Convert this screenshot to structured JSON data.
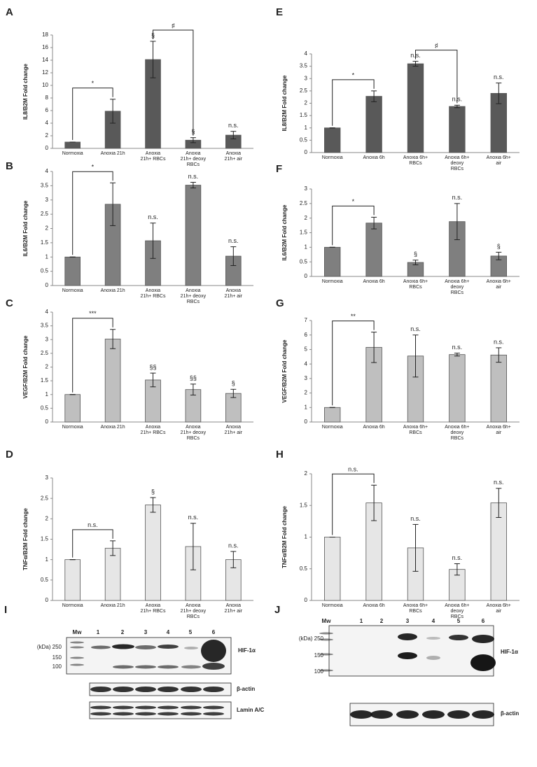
{
  "chart_data": [
    {
      "type": "bar",
      "panel": "A",
      "ylabel": "IL8/B2M Fold change",
      "categories": [
        "Normoxia",
        "Anoxia 21h",
        "Anoxia 21h+ RBCs",
        "Anoxia 21h+ deoxy RBCs",
        "Anoxia 21h+ air"
      ],
      "values": [
        1,
        5.9,
        14.1,
        1.3,
        2.1
      ],
      "errors": [
        0,
        1.9,
        2.9,
        0.4,
        0.6
      ],
      "annotations": [
        null,
        null,
        "§",
        "§",
        "n.s."
      ],
      "brackets": [
        {
          "from": 0,
          "to": 1,
          "label": "*"
        },
        {
          "from": 2,
          "to": 3,
          "label": "♯"
        }
      ],
      "color": "#595959",
      "ylim": [
        0,
        18
      ],
      "yticks": [
        0,
        2,
        4,
        6,
        8,
        10,
        12,
        14,
        16,
        18
      ]
    },
    {
      "type": "bar",
      "panel": "B",
      "ylabel": "IL6/B2M Fold change",
      "categories": [
        "Normoxia",
        "Anoxia 21h",
        "Anoxia 21h+ RBCs",
        "Anoxia 21h+ deoxy RBCs",
        "Anoxia 21h+ air"
      ],
      "values": [
        1,
        2.85,
        1.57,
        3.52,
        1.03
      ],
      "errors": [
        0,
        0.75,
        0.62,
        0.1,
        0.33
      ],
      "annotations": [
        null,
        null,
        "n.s.",
        "n.s.",
        "n.s."
      ],
      "brackets": [
        {
          "from": 0,
          "to": 1,
          "label": "*"
        }
      ],
      "color": "#7f7f7f",
      "ylim": [
        0,
        4
      ],
      "yticks": [
        0,
        0.5,
        1,
        1.5,
        2,
        2.5,
        3,
        3.5,
        4
      ]
    },
    {
      "type": "bar",
      "panel": "C",
      "ylabel": "VEGF/B2M Fold change",
      "categories": [
        "Normoxia",
        "Anoxia 21h",
        "Anoxia 21h+ RBCs",
        "Anoxia 21h+ deoxy RBCs",
        "Anoxia 21h+ air"
      ],
      "values": [
        1,
        3.02,
        1.53,
        1.18,
        1.04
      ],
      "errors": [
        0,
        0.35,
        0.25,
        0.2,
        0.15
      ],
      "annotations": [
        null,
        null,
        "§§",
        "§§",
        "§"
      ],
      "brackets": [
        {
          "from": 0,
          "to": 1,
          "label": "***"
        }
      ],
      "color": "#bfbfbf",
      "ylim": [
        0,
        4
      ],
      "yticks": [
        0,
        0.5,
        1,
        1.5,
        2,
        2.5,
        3,
        3.5,
        4
      ]
    },
    {
      "type": "bar",
      "panel": "D",
      "ylabel": "TNFα/B2M Fold change",
      "categories": [
        "Normoxia",
        "Anoxia 21h",
        "Anoxia 21h+ RBCs",
        "Anoxia 21h+ deoxy RBCs",
        "Anoxia 21h+ air"
      ],
      "values": [
        1,
        1.28,
        2.34,
        1.32,
        1.0
      ],
      "errors": [
        0,
        0.18,
        0.18,
        0.57,
        0.2
      ],
      "annotations": [
        null,
        null,
        "§",
        "n.s.",
        "n.s."
      ],
      "brackets": [
        {
          "from": 0,
          "to": 1,
          "label": "n.s."
        }
      ],
      "color": "#e6e6e6",
      "ylim": [
        0,
        3
      ],
      "yticks": [
        0,
        0.5,
        1,
        1.5,
        2,
        2.5,
        3
      ]
    },
    {
      "type": "bar",
      "panel": "E",
      "ylabel": "IL8/B2M Fold change",
      "categories": [
        "Normoxia",
        "Anoxia 6h",
        "Anoxia 6h+ RBCs",
        "Anoxia 6h+ deoxy RBCs",
        "Anoxia 6h+ air"
      ],
      "values": [
        1,
        2.28,
        3.6,
        1.87,
        2.4
      ],
      "errors": [
        0,
        0.22,
        0.1,
        0.05,
        0.42
      ],
      "annotations": [
        null,
        null,
        "n.s.",
        "n.s.",
        "n.s."
      ],
      "brackets": [
        {
          "from": 0,
          "to": 1,
          "label": "*"
        },
        {
          "from": 2,
          "to": 3,
          "label": "♯"
        }
      ],
      "color": "#595959",
      "ylim": [
        0,
        4
      ],
      "yticks": [
        0,
        0.5,
        1,
        1.5,
        2,
        2.5,
        3,
        3.5,
        4
      ]
    },
    {
      "type": "bar",
      "panel": "F",
      "ylabel": "IL6/B2M Fold change",
      "categories": [
        "Normoxia",
        "Anoxia 6h",
        "Anoxia 6h+ RBCs",
        "Anoxia 6h+ deoxy RBCs",
        "Anoxia 6h+ air"
      ],
      "values": [
        1,
        1.83,
        0.48,
        1.88,
        0.7
      ],
      "errors": [
        0,
        0.2,
        0.08,
        0.62,
        0.13
      ],
      "annotations": [
        null,
        null,
        "§",
        "n.s.",
        "§"
      ],
      "brackets": [
        {
          "from": 0,
          "to": 1,
          "label": "*"
        }
      ],
      "color": "#7f7f7f",
      "ylim": [
        0,
        3
      ],
      "yticks": [
        0,
        0.5,
        1,
        1.5,
        2,
        2.5,
        3
      ]
    },
    {
      "type": "bar",
      "panel": "G",
      "ylabel": "VEGF/B2M Fold change",
      "categories": [
        "Normoxia",
        "Anoxia 6h",
        "Anoxia 6h+ RBCs",
        "Anoxia 6h+ deoxy RBCs",
        "Anoxia 6h+ air"
      ],
      "values": [
        1,
        5.15,
        4.55,
        4.65,
        4.62
      ],
      "errors": [
        0,
        1.05,
        1.45,
        0.1,
        0.5
      ],
      "annotations": [
        null,
        null,
        "n.s.",
        "n.s.",
        "n.s."
      ],
      "brackets": [
        {
          "from": 0,
          "to": 1,
          "label": "**"
        }
      ],
      "color": "#bfbfbf",
      "ylim": [
        0,
        7
      ],
      "yticks": [
        0,
        1,
        2,
        3,
        4,
        5,
        6,
        7
      ]
    },
    {
      "type": "bar",
      "panel": "H",
      "ylabel": "TNFα/B2M Fold change",
      "categories": [
        "Normoxia",
        "Anoxia 6h",
        "Anoxia 6h+ RBCs",
        "Anoxia 6h+ deoxy RBCs",
        "Anoxia 6h+ air"
      ],
      "values": [
        1,
        1.54,
        0.83,
        0.49,
        1.54
      ],
      "errors": [
        0,
        0.28,
        0.37,
        0.09,
        0.23
      ],
      "annotations": [
        null,
        null,
        "n.s.",
        "n.s.",
        "n.s."
      ],
      "brackets": [
        {
          "from": 0,
          "to": 1,
          "label": "n.s."
        }
      ],
      "color": "#e6e6e6",
      "ylim": [
        0,
        2
      ],
      "yticks": [
        0,
        0.5,
        1,
        1.5,
        2
      ]
    }
  ],
  "blots": [
    {
      "panel": "I",
      "lanes": [
        "Mw",
        "1",
        "2",
        "3",
        "4",
        "5",
        "6"
      ],
      "markers": [
        "(kDa) 250",
        "150",
        "100"
      ],
      "labels": [
        "HIF-1α",
        "β-actin",
        "Lamin A/C"
      ]
    },
    {
      "panel": "J",
      "lanes": [
        "Mw",
        "1",
        "2",
        "3",
        "4",
        "5",
        "6"
      ],
      "markers": [
        "(kDa) 250",
        "150",
        "100"
      ],
      "labels": [
        "HIF-1α",
        "β-actin"
      ]
    }
  ]
}
